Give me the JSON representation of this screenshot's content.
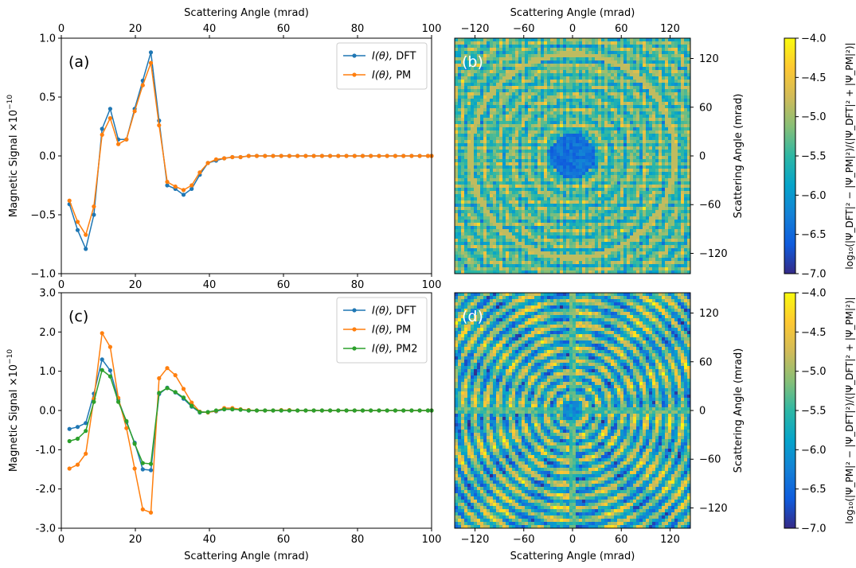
{
  "chart_data": [
    {
      "id": "a",
      "type": "line",
      "panel_label": "(a)",
      "xlabel": "",
      "x_top_label": "Scattering Angle (mrad)",
      "ylabel": "Magnetic Signal ×10",
      "ylabel_exp": "−10",
      "xlim": [
        0,
        100
      ],
      "ylim": [
        -1.0,
        1.0
      ],
      "xticks": [
        0,
        20,
        40,
        60,
        80,
        100
      ],
      "xtick_labels": [
        "0",
        "20",
        "40",
        "60",
        "80",
        "100"
      ],
      "yticks": [
        -1.0,
        -0.5,
        0.0,
        0.5,
        1.0
      ],
      "ytick_labels": [
        "−1.0",
        "−0.5",
        "0.0",
        "0.5",
        "1.0"
      ],
      "legend_position": "upper-right",
      "x": [
        2.2,
        4.4,
        6.6,
        8.8,
        11,
        13.2,
        15.4,
        17.6,
        19.8,
        22,
        24.2,
        26.4,
        28.6,
        30.8,
        33,
        35.2,
        37.4,
        39.6,
        41.8,
        44,
        46.2,
        48.4,
        50.6,
        52.8,
        55,
        57.2,
        59.4,
        61.6,
        63.8,
        66,
        68.2,
        70.4,
        72.6,
        74.8,
        77,
        79.2,
        81.4,
        83.6,
        85.8,
        88,
        90.2,
        92.4,
        94.6,
        96.8,
        99,
        100
      ],
      "series": [
        {
          "name": "DFT",
          "legend_prefix": "I(θ), ",
          "color": "#1f77b4",
          "values": [
            -0.41,
            -0.63,
            -0.79,
            -0.5,
            0.23,
            0.4,
            0.14,
            0.14,
            0.4,
            0.64,
            0.88,
            0.3,
            -0.25,
            -0.28,
            -0.33,
            -0.28,
            -0.16,
            -0.06,
            -0.04,
            -0.02,
            -0.01,
            -0.01,
            0,
            0,
            0,
            0,
            0,
            0,
            0,
            0,
            0,
            0,
            0,
            0,
            0,
            0,
            0,
            0,
            0,
            0,
            0,
            0,
            0,
            0,
            0,
            0
          ]
        },
        {
          "name": "PM",
          "legend_prefix": "I(θ), ",
          "color": "#ff7f0e",
          "values": [
            -0.38,
            -0.56,
            -0.67,
            -0.43,
            0.18,
            0.32,
            0.1,
            0.14,
            0.38,
            0.6,
            0.79,
            0.26,
            -0.22,
            -0.26,
            -0.29,
            -0.25,
            -0.14,
            -0.06,
            -0.03,
            -0.02,
            -0.01,
            -0.01,
            0,
            0,
            0,
            0,
            0,
            0,
            0,
            0,
            0,
            0,
            0,
            0,
            0,
            0,
            0,
            0,
            0,
            0,
            0,
            0,
            0,
            0,
            0,
            0
          ]
        }
      ]
    },
    {
      "id": "b",
      "type": "heatmap",
      "panel_label": "(b)",
      "x_top_label": "Scattering Angle (mrad)",
      "ylabel": "Scattering Angle (mrad)",
      "xlim": [
        -145,
        145
      ],
      "ylim": [
        -145,
        145
      ],
      "xticks": [
        -120,
        -60,
        0,
        60,
        120
      ],
      "xtick_labels": [
        "−120",
        "−60",
        "0",
        "60",
        "120"
      ],
      "yticks": [
        -120,
        -60,
        0,
        60,
        120
      ],
      "ytick_labels": [
        "−120",
        "−60",
        "0",
        "60",
        "120"
      ],
      "colormap": "parula",
      "pattern": "checker"
    },
    {
      "id": "c",
      "type": "line",
      "panel_label": "(c)",
      "xlabel": "Scattering Angle (mrad)",
      "ylabel": "Magnetic Signal ×10",
      "ylabel_exp": "−10",
      "xlim": [
        0,
        100
      ],
      "ylim": [
        -3.0,
        3.0
      ],
      "xticks": [
        0,
        20,
        40,
        60,
        80,
        100
      ],
      "xtick_labels": [
        "0",
        "20",
        "40",
        "60",
        "80",
        "100"
      ],
      "yticks": [
        -3,
        -2,
        -1,
        0,
        1,
        2,
        3
      ],
      "ytick_labels": [
        "-3.0",
        "-2.0",
        "-1.0",
        "0.0",
        "1.0",
        "2.0",
        "3.0"
      ],
      "legend_position": "upper-right",
      "x": [
        2.2,
        4.4,
        6.6,
        8.8,
        11,
        13.2,
        15.4,
        17.6,
        19.8,
        22,
        24.2,
        26.4,
        28.6,
        30.8,
        33,
        35.2,
        37.4,
        39.6,
        41.8,
        44,
        46.2,
        48.4,
        50.6,
        52.8,
        55,
        57.2,
        59.4,
        61.6,
        63.8,
        66,
        68.2,
        70.4,
        72.6,
        74.8,
        77,
        79.2,
        81.4,
        83.6,
        85.8,
        88,
        90.2,
        92.4,
        94.6,
        96.8,
        99,
        100
      ],
      "series": [
        {
          "name": "DFT",
          "legend_prefix": "I(θ), ",
          "color": "#1f77b4",
          "values": [
            -0.47,
            -0.42,
            -0.32,
            0.43,
            1.3,
            1.02,
            0.28,
            -0.3,
            -0.82,
            -1.5,
            -1.52,
            0.42,
            0.58,
            0.46,
            0.3,
            0.1,
            -0.05,
            -0.04,
            -0.02,
            0.03,
            0.03,
            0.02,
            0,
            0,
            0,
            0,
            0,
            0,
            0,
            0,
            0,
            0,
            0,
            0,
            0,
            0,
            0,
            0,
            0,
            0,
            0,
            0,
            0,
            0,
            0,
            0
          ]
        },
        {
          "name": "PM",
          "legend_prefix": "I(θ), ",
          "color": "#ff7f0e",
          "values": [
            -1.48,
            -1.38,
            -1.1,
            0.3,
            1.97,
            1.62,
            0.32,
            -0.45,
            -1.48,
            -2.52,
            -2.6,
            0.82,
            1.08,
            0.9,
            0.55,
            0.2,
            -0.03,
            -0.05,
            -0.01,
            0.06,
            0.06,
            0.03,
            0.01,
            0,
            0,
            0,
            0.01,
            0.01,
            0,
            0,
            0,
            0,
            0,
            0,
            0,
            0,
            0,
            0,
            0,
            0,
            0,
            0,
            0,
            0,
            0,
            0
          ]
        },
        {
          "name": "PM2",
          "legend_prefix": "I(θ), ",
          "color": "#2ca02c",
          "values": [
            -0.78,
            -0.72,
            -0.52,
            0.22,
            1.03,
            0.87,
            0.22,
            -0.27,
            -0.85,
            -1.34,
            -1.36,
            0.45,
            0.57,
            0.47,
            0.33,
            0.12,
            -0.04,
            -0.04,
            0,
            0.03,
            0.03,
            0.02,
            0,
            0,
            0,
            0,
            0,
            0,
            0,
            0,
            0,
            0,
            0,
            0,
            0,
            0,
            0,
            0,
            0,
            0,
            0,
            0,
            0,
            0,
            0,
            0
          ]
        }
      ]
    },
    {
      "id": "d",
      "type": "heatmap",
      "panel_label": "(d)",
      "xlabel": "Scattering Angle (mrad)",
      "ylabel": "Scattering Angle (mrad)",
      "xlim": [
        -145,
        145
      ],
      "ylim": [
        -145,
        145
      ],
      "xticks": [
        -120,
        -60,
        0,
        60,
        120
      ],
      "xtick_labels": [
        "−120",
        "−60",
        "0",
        "60",
        "120"
      ],
      "yticks": [
        -120,
        -60,
        0,
        60,
        120
      ],
      "ytick_labels": [
        "−120",
        "−60",
        "0",
        "60",
        "120"
      ],
      "colormap": "parula",
      "pattern": "rings"
    }
  ],
  "colorbars": [
    {
      "id": "cb1",
      "clim": [
        -7.0,
        -4.0
      ],
      "ticks": [
        -7.0,
        -6.5,
        -6.0,
        -5.5,
        -5.0,
        -4.5,
        -4.0
      ],
      "tick_labels": [
        "−7.0",
        "−6.5",
        "−6.0",
        "−5.5",
        "−5.0",
        "−4.5",
        "−4.0"
      ],
      "label": "log₁₀(|Ψ_DFT|² − |Ψ_PM|²)/(|Ψ_DFT|² + |Ψ_PM|²)|"
    },
    {
      "id": "cb2",
      "clim": [
        -7.0,
        -4.0
      ],
      "ticks": [
        -7.0,
        -6.5,
        -6.0,
        -5.5,
        -5.0,
        -4.5,
        -4.0
      ],
      "tick_labels": [
        "−7.0",
        "−6.5",
        "−6.0",
        "−5.5",
        "−5.0",
        "−4.5",
        "−4.0"
      ],
      "label": "log₁₀(|Ψ_PM|² − |Ψ_DFT|²)/(|Ψ_DFT|² + |Ψ_PM|²)|"
    }
  ],
  "colors": {
    "parula": [
      "#352a87",
      "#0f5cdd",
      "#1481d6",
      "#06a4ca",
      "#2eb7a4",
      "#87bf77",
      "#d1bb59",
      "#fec832",
      "#f9fb0e"
    ]
  }
}
